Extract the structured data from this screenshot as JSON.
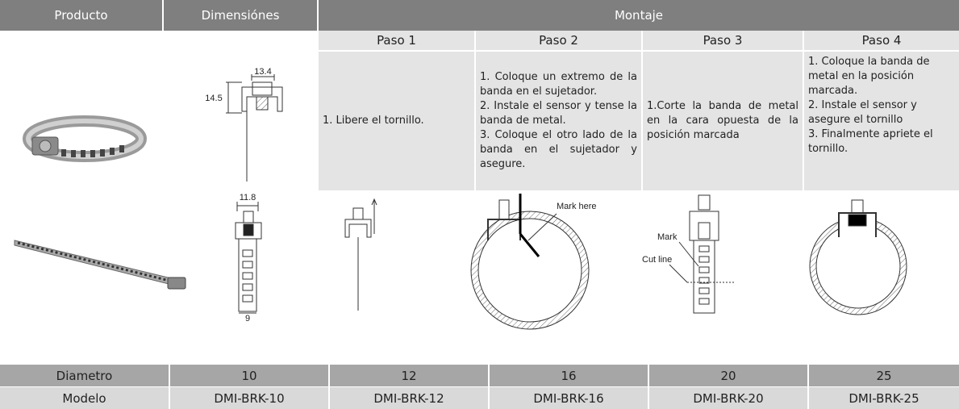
{
  "header": {
    "columns": [
      "Producto",
      "Dimensiónes",
      "Montaje"
    ]
  },
  "steps": [
    {
      "title": "Paso 1",
      "items": [
        "1. Libere el tornillo."
      ]
    },
    {
      "title": "Paso 2",
      "items": [
        "1. Coloque un extremo de la banda en el sujetador.",
        "2. Instale el sensor y tense la banda de metal.",
        "3. Coloque el otro lado de la banda en el sujetador y asegure."
      ]
    },
    {
      "title": "Paso 3",
      "items": [
        "1.Corte la banda de metal en la cara opuesta de la posición marcada"
      ]
    },
    {
      "title": "Paso 4",
      "items": [
        "1. Coloque la banda de metal en la posición marcada.",
        "2. Instale el sensor y asegure el tornillo",
        "3. Finalmente apriete el tornillo."
      ]
    }
  ],
  "dimension_labels": [
    "13.4",
    "14.5",
    "11.8",
    "9"
  ],
  "diagram_labels": [
    "Mark here",
    "Mark",
    "Cut line"
  ],
  "spec_table": {
    "rows": [
      [
        "Diametro",
        "10",
        "12",
        "16",
        "20",
        "25"
      ],
      [
        "Modelo",
        "DMI-BRK-10",
        "DMI-BRK-12",
        "DMI-BRK-16",
        "DMI-BRK-20",
        "DMI-BRK-25"
      ]
    ]
  }
}
